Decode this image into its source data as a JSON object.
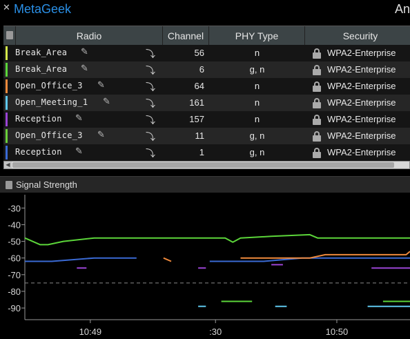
{
  "topbar": {
    "close_glyph": "✕",
    "brand": "MetaGeek",
    "right_text": "An"
  },
  "table": {
    "headers": {
      "radio": "Radio",
      "channel": "Channel",
      "phy": "PHY Type",
      "security": "Security"
    },
    "rows": [
      {
        "radio": "Break_Area",
        "channel": "56",
        "phy": "n",
        "security": "WPA2-Enterprise",
        "color": "#d4e84a"
      },
      {
        "radio": "Break_Area",
        "channel": "6",
        "phy": "g, n",
        "security": "WPA2-Enterprise",
        "color": "#5cd63a"
      },
      {
        "radio": "Open_Office_3",
        "channel": "64",
        "phy": "n",
        "security": "WPA2-Enterprise",
        "color": "#f08a3c"
      },
      {
        "radio": "Open_Meeting_1",
        "channel": "161",
        "phy": "n",
        "security": "WPA2-Enterprise",
        "color": "#5fc8ee"
      },
      {
        "radio": "Reception",
        "channel": "157",
        "phy": "n",
        "security": "WPA2-Enterprise",
        "color": "#9a44d4"
      },
      {
        "radio": "Open_Office_3",
        "channel": "11",
        "phy": "g, n",
        "security": "WPA2-Enterprise",
        "color": "#6ad03a"
      },
      {
        "radio": "Reception",
        "channel": "1",
        "phy": "g, n",
        "security": "WPA2-Enterprise",
        "color": "#3a6ad4"
      }
    ],
    "icons": {
      "edit": "pencil-icon",
      "expand": "arrow-icon",
      "security": "lock-icon"
    }
  },
  "signal_panel": {
    "title": "Signal Strength"
  },
  "chart_data": {
    "type": "line",
    "title": "Signal Strength",
    "xlabel": "",
    "ylabel": "",
    "yticks": [
      -30,
      -40,
      -50,
      -60,
      -70,
      -80,
      -90
    ],
    "ylim": [
      -97,
      -22
    ],
    "xlim": [
      0,
      100
    ],
    "xtick_labels": [
      {
        "x": 17,
        "label": "10:49"
      },
      {
        "x": 49.5,
        "label": ":30"
      },
      {
        "x": 81,
        "label": "10:50"
      }
    ],
    "threshold": -75,
    "grid": false,
    "series": [
      {
        "color": "#5cd63a",
        "points": [
          [
            0,
            -48
          ],
          [
            4,
            -52
          ],
          [
            6,
            -52
          ],
          [
            10,
            -50
          ],
          [
            18,
            -48
          ],
          [
            52,
            -48
          ],
          [
            54,
            -50.5
          ],
          [
            56,
            -48
          ],
          [
            64,
            -47
          ],
          [
            74,
            -46
          ],
          [
            76,
            -48
          ],
          [
            100,
            -48
          ]
        ]
      },
      {
        "color": "#3a6ad4",
        "points": [
          [
            0,
            -62
          ],
          [
            7,
            -62
          ],
          [
            18,
            -60
          ],
          [
            29,
            -60
          ]
        ]
      },
      {
        "color": "#3a6ad4",
        "points": [
          [
            48,
            -62
          ],
          [
            62,
            -62
          ],
          [
            72,
            -60
          ],
          [
            100,
            -60
          ]
        ]
      },
      {
        "color": "#f08a3c",
        "points": [
          [
            36,
            -60
          ],
          [
            38,
            -62
          ]
        ]
      },
      {
        "color": "#f08a3c",
        "points": [
          [
            56,
            -60
          ],
          [
            74,
            -60
          ],
          [
            78,
            -58
          ],
          [
            99,
            -58
          ],
          [
            100,
            -56
          ]
        ]
      },
      {
        "color": "#9a44d4",
        "points": [
          [
            13.5,
            -66
          ],
          [
            16,
            -66
          ]
        ]
      },
      {
        "color": "#9a44d4",
        "points": [
          [
            45,
            -66
          ],
          [
            47,
            -66
          ]
        ]
      },
      {
        "color": "#9a44d4",
        "points": [
          [
            64,
            -64
          ],
          [
            67,
            -64
          ]
        ]
      },
      {
        "color": "#9a44d4",
        "points": [
          [
            90,
            -66
          ],
          [
            100,
            -66
          ]
        ]
      },
      {
        "color": "#5fc8ee",
        "points": [
          [
            45,
            -89
          ],
          [
            47,
            -89
          ]
        ]
      },
      {
        "color": "#5fc8ee",
        "points": [
          [
            65,
            -89
          ],
          [
            68,
            -89
          ]
        ]
      },
      {
        "color": "#5fc8ee",
        "points": [
          [
            89,
            -89
          ],
          [
            100,
            -89
          ]
        ]
      },
      {
        "color": "#5cd63a",
        "points": [
          [
            51,
            -86
          ],
          [
            59,
            -86
          ]
        ]
      },
      {
        "color": "#5cd63a",
        "points": [
          [
            93,
            -86
          ],
          [
            100,
            -86
          ]
        ]
      }
    ]
  }
}
